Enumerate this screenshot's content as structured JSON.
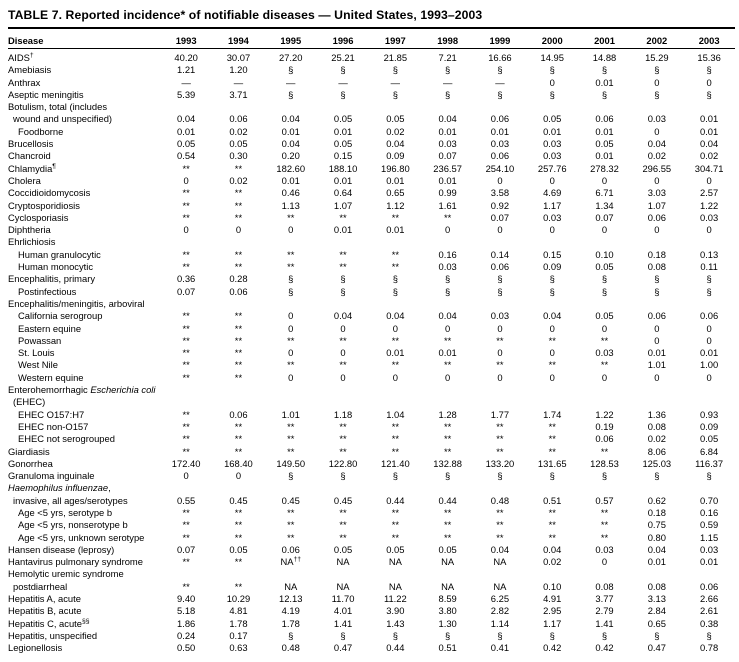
{
  "title": "TABLE 7. Reported incidence* of notifiable diseases — United States, 1993–2003",
  "table": {
    "disease_header": "Disease",
    "years": [
      "1993",
      "1994",
      "1995",
      "1996",
      "1997",
      "1998",
      "1999",
      "2000",
      "2001",
      "2002",
      "2003"
    ],
    "rows": [
      {
        "pre": "AIDS",
        "it": "",
        "post": "",
        "sup": "†",
        "indent": 0,
        "values": [
          "40.20",
          "30.07",
          "27.20",
          "25.21",
          "21.85",
          "7.21",
          "16.66",
          "14.95",
          "14.88",
          "15.29",
          "15.36"
        ]
      },
      {
        "pre": "Amebiasis",
        "it": "",
        "post": "",
        "sup": "",
        "indent": 0,
        "values": [
          "1.21",
          "1.20",
          "§",
          "§",
          "§",
          "§",
          "§",
          "§",
          "§",
          "§",
          "§"
        ]
      },
      {
        "pre": "Anthrax",
        "it": "",
        "post": "",
        "sup": "",
        "indent": 0,
        "values": [
          "—",
          "—",
          "—",
          "—",
          "—",
          "—",
          "—",
          "0",
          "0.01",
          "0",
          "0"
        ]
      },
      {
        "pre": "Aseptic meningitis",
        "it": "",
        "post": "",
        "sup": "",
        "indent": 0,
        "values": [
          "5.39",
          "3.71",
          "§",
          "§",
          "§",
          "§",
          "§",
          "§",
          "§",
          "§",
          "§"
        ]
      },
      {
        "pre": "Botulism, total (includes",
        "it": "",
        "post": "",
        "sup": "",
        "indent": 0,
        "values": []
      },
      {
        "pre": "wound and unspecified)",
        "it": "",
        "post": "",
        "sup": "",
        "indent": 1,
        "values": [
          "0.04",
          "0.06",
          "0.04",
          "0.05",
          "0.05",
          "0.04",
          "0.06",
          "0.05",
          "0.06",
          "0.03",
          "0.01"
        ]
      },
      {
        "pre": "Foodborne",
        "it": "",
        "post": "",
        "sup": "",
        "indent": 2,
        "values": [
          "0.01",
          "0.02",
          "0.01",
          "0.01",
          "0.02",
          "0.01",
          "0.01",
          "0.01",
          "0.01",
          "0",
          "0.01"
        ]
      },
      {
        "pre": "Brucellosis",
        "it": "",
        "post": "",
        "sup": "",
        "indent": 0,
        "values": [
          "0.05",
          "0.05",
          "0.04",
          "0.05",
          "0.04",
          "0.03",
          "0.03",
          "0.03",
          "0.05",
          "0.04",
          "0.04"
        ]
      },
      {
        "pre": "Chancroid",
        "it": "",
        "post": "",
        "sup": "",
        "indent": 0,
        "values": [
          "0.54",
          "0.30",
          "0.20",
          "0.15",
          "0.09",
          "0.07",
          "0.06",
          "0.03",
          "0.01",
          "0.02",
          "0.02"
        ]
      },
      {
        "pre": "Chlamydia",
        "it": "",
        "post": "",
        "sup": "¶",
        "indent": 0,
        "values": [
          "**",
          "**",
          "182.60",
          "188.10",
          "196.80",
          "236.57",
          "254.10",
          "257.76",
          "278.32",
          "296.55",
          "304.71"
        ]
      },
      {
        "pre": "Cholera",
        "it": "",
        "post": "",
        "sup": "",
        "indent": 0,
        "values": [
          "0",
          "0.02",
          "0.01",
          "0.01",
          "0.01",
          "0.01",
          "0",
          "0",
          "0",
          "0",
          "0"
        ]
      },
      {
        "pre": "Coccidioidomycosis",
        "it": "",
        "post": "",
        "sup": "",
        "indent": 0,
        "values": [
          "**",
          "**",
          "0.46",
          "0.64",
          "0.65",
          "0.99",
          "3.58",
          "4.69",
          "6.71",
          "3.03",
          "2.57"
        ]
      },
      {
        "pre": "Cryptosporidiosis",
        "it": "",
        "post": "",
        "sup": "",
        "indent": 0,
        "values": [
          "**",
          "**",
          "1.13",
          "1.07",
          "1.12",
          "1.61",
          "0.92",
          "1.17",
          "1.34",
          "1.07",
          "1.22"
        ]
      },
      {
        "pre": "Cyclosporiasis",
        "it": "",
        "post": "",
        "sup": "",
        "indent": 0,
        "values": [
          "**",
          "**",
          "**",
          "**",
          "**",
          "**",
          "0.07",
          "0.03",
          "0.07",
          "0.06",
          "0.03"
        ]
      },
      {
        "pre": "Diphtheria",
        "it": "",
        "post": "",
        "sup": "",
        "indent": 0,
        "values": [
          "0",
          "0",
          "0",
          "0.01",
          "0.01",
          "0",
          "0",
          "0",
          "0",
          "0",
          "0"
        ]
      },
      {
        "pre": "Ehrlichiosis",
        "it": "",
        "post": "",
        "sup": "",
        "indent": 0,
        "values": []
      },
      {
        "pre": "Human granulocytic",
        "it": "",
        "post": "",
        "sup": "",
        "indent": 2,
        "values": [
          "**",
          "**",
          "**",
          "**",
          "**",
          "0.16",
          "0.14",
          "0.15",
          "0.10",
          "0.18",
          "0.13"
        ]
      },
      {
        "pre": "Human monocytic",
        "it": "",
        "post": "",
        "sup": "",
        "indent": 2,
        "values": [
          "**",
          "**",
          "**",
          "**",
          "**",
          "0.03",
          "0.06",
          "0.09",
          "0.05",
          "0.08",
          "0.11"
        ]
      },
      {
        "pre": "Encephalitis, primary",
        "it": "",
        "post": "",
        "sup": "",
        "indent": 0,
        "values": [
          "0.36",
          "0.28",
          "§",
          "§",
          "§",
          "§",
          "§",
          "§",
          "§",
          "§",
          "§"
        ]
      },
      {
        "pre": "Postinfectious",
        "it": "",
        "post": "",
        "sup": "",
        "indent": 2,
        "values": [
          "0.07",
          "0.06",
          "§",
          "§",
          "§",
          "§",
          "§",
          "§",
          "§",
          "§",
          "§"
        ]
      },
      {
        "pre": "Encephalitis/meningitis, arboviral",
        "it": "",
        "post": "",
        "sup": "",
        "indent": 0,
        "values": []
      },
      {
        "pre": "California serogroup",
        "it": "",
        "post": "",
        "sup": "",
        "indent": 2,
        "values": [
          "**",
          "**",
          "0",
          "0.04",
          "0.04",
          "0.04",
          "0.03",
          "0.04",
          "0.05",
          "0.06",
          "0.06"
        ]
      },
      {
        "pre": "Eastern equine",
        "it": "",
        "post": "",
        "sup": "",
        "indent": 2,
        "values": [
          "**",
          "**",
          "0",
          "0",
          "0",
          "0",
          "0",
          "0",
          "0",
          "0",
          "0"
        ]
      },
      {
        "pre": "Powassan",
        "it": "",
        "post": "",
        "sup": "",
        "indent": 2,
        "values": [
          "**",
          "**",
          "**",
          "**",
          "**",
          "**",
          "**",
          "**",
          "**",
          "0",
          "0"
        ]
      },
      {
        "pre": "St. Louis",
        "it": "",
        "post": "",
        "sup": "",
        "indent": 2,
        "values": [
          "**",
          "**",
          "0",
          "0",
          "0.01",
          "0.01",
          "0",
          "0",
          "0.03",
          "0.01",
          "0.01"
        ]
      },
      {
        "pre": "West Nile",
        "it": "",
        "post": "",
        "sup": "",
        "indent": 2,
        "values": [
          "**",
          "**",
          "**",
          "**",
          "**",
          "**",
          "**",
          "**",
          "**",
          "1.01",
          "1.00"
        ]
      },
      {
        "pre": "Western equine",
        "it": "",
        "post": "",
        "sup": "",
        "indent": 2,
        "values": [
          "**",
          "**",
          "0",
          "0",
          "0",
          "0",
          "0",
          "0",
          "0",
          "0",
          "0"
        ]
      },
      {
        "pre": "Enterohemorrhagic ",
        "it": "Escherichia coli",
        "post": "",
        "sup": "",
        "indent": 0,
        "values": []
      },
      {
        "pre": "(EHEC)",
        "it": "",
        "post": "",
        "sup": "",
        "indent": 1,
        "values": []
      },
      {
        "pre": "EHEC O157:H7",
        "it": "",
        "post": "",
        "sup": "",
        "indent": 2,
        "values": [
          "**",
          "0.06",
          "1.01",
          "1.18",
          "1.04",
          "1.28",
          "1.77",
          "1.74",
          "1.22",
          "1.36",
          "0.93"
        ]
      },
      {
        "pre": "EHEC non-O157",
        "it": "",
        "post": "",
        "sup": "",
        "indent": 2,
        "values": [
          "**",
          "**",
          "**",
          "**",
          "**",
          "**",
          "**",
          "**",
          "0.19",
          "0.08",
          "0.09"
        ]
      },
      {
        "pre": "EHEC not serogrouped",
        "it": "",
        "post": "",
        "sup": "",
        "indent": 2,
        "values": [
          "**",
          "**",
          "**",
          "**",
          "**",
          "**",
          "**",
          "**",
          "0.06",
          "0.02",
          "0.05"
        ]
      },
      {
        "pre": "Giardiasis",
        "it": "",
        "post": "",
        "sup": "",
        "indent": 0,
        "values": [
          "**",
          "**",
          "**",
          "**",
          "**",
          "**",
          "**",
          "**",
          "**",
          "8.06",
          "6.84"
        ]
      },
      {
        "pre": "Gonorrhea",
        "it": "",
        "post": "",
        "sup": "",
        "indent": 0,
        "values": [
          "172.40",
          "168.40",
          "149.50",
          "122.80",
          "121.40",
          "132.88",
          "133.20",
          "131.65",
          "128.53",
          "125.03",
          "116.37"
        ]
      },
      {
        "pre": "Granuloma inguinale",
        "it": "",
        "post": "",
        "sup": "",
        "indent": 0,
        "values": [
          "0",
          "0",
          "§",
          "§",
          "§",
          "§",
          "§",
          "§",
          "§",
          "§",
          "§"
        ]
      },
      {
        "pre": "",
        "it": "Haemophilus influenzae",
        "post": ",",
        "sup": "",
        "indent": 0,
        "values": []
      },
      {
        "pre": "invasive, all ages/serotypes",
        "it": "",
        "post": "",
        "sup": "",
        "indent": 1,
        "values": [
          "0.55",
          "0.45",
          "0.45",
          "0.45",
          "0.44",
          "0.44",
          "0.48",
          "0.51",
          "0.57",
          "0.62",
          "0.70"
        ]
      },
      {
        "pre": "Age <5 yrs, serotype b",
        "it": "",
        "post": "",
        "sup": "",
        "indent": 2,
        "values": [
          "**",
          "**",
          "**",
          "**",
          "**",
          "**",
          "**",
          "**",
          "**",
          "0.18",
          "0.16"
        ]
      },
      {
        "pre": "Age <5 yrs, nonserotype b",
        "it": "",
        "post": "",
        "sup": "",
        "indent": 2,
        "values": [
          "**",
          "**",
          "**",
          "**",
          "**",
          "**",
          "**",
          "**",
          "**",
          "0.75",
          "0.59"
        ]
      },
      {
        "pre": "Age <5 yrs, unknown serotype",
        "it": "",
        "post": "",
        "sup": "",
        "indent": 2,
        "values": [
          "**",
          "**",
          "**",
          "**",
          "**",
          "**",
          "**",
          "**",
          "**",
          "0.80",
          "1.15"
        ]
      },
      {
        "pre": "Hansen disease (leprosy)",
        "it": "",
        "post": "",
        "sup": "",
        "indent": 0,
        "values": [
          "0.07",
          "0.05",
          "0.06",
          "0.05",
          "0.05",
          "0.05",
          "0.04",
          "0.04",
          "0.03",
          "0.04",
          "0.03"
        ]
      },
      {
        "pre": "Hantavirus pulmonary syndrome",
        "it": "",
        "post": "",
        "sup": "",
        "indent": 0,
        "values": [
          "**",
          "**",
          "NA^††",
          "NA",
          "NA",
          "NA",
          "NA",
          "0.02",
          "0",
          "0.01",
          "0.01"
        ]
      },
      {
        "pre": "Hemolytic uremic syndrome",
        "it": "",
        "post": "",
        "sup": "",
        "indent": 0,
        "values": []
      },
      {
        "pre": "postdiarrheal",
        "it": "",
        "post": "",
        "sup": "",
        "indent": 1,
        "values": [
          "**",
          "**",
          "NA",
          "NA",
          "NA",
          "NA",
          "NA",
          "0.10",
          "0.08",
          "0.08",
          "0.06"
        ]
      },
      {
        "pre": "Hepatitis A, acute",
        "it": "",
        "post": "",
        "sup": "",
        "indent": 0,
        "values": [
          "9.40",
          "10.29",
          "12.13",
          "11.70",
          "11.22",
          "8.59",
          "6.25",
          "4.91",
          "3.77",
          "3.13",
          "2.66"
        ]
      },
      {
        "pre": "Hepatitis B, acute",
        "it": "",
        "post": "",
        "sup": "",
        "indent": 0,
        "values": [
          "5.18",
          "4.81",
          "4.19",
          "4.01",
          "3.90",
          "3.80",
          "2.82",
          "2.95",
          "2.79",
          "2.84",
          "2.61"
        ]
      },
      {
        "pre": "Hepatitis C, acute",
        "it": "",
        "post": "",
        "sup": "§§",
        "indent": 0,
        "values": [
          "1.86",
          "1.78",
          "1.78",
          "1.41",
          "1.43",
          "1.30",
          "1.14",
          "1.17",
          "1.41",
          "0.65",
          "0.38"
        ]
      },
      {
        "pre": "Hepatitis, unspecified",
        "it": "",
        "post": "",
        "sup": "",
        "indent": 0,
        "values": [
          "0.24",
          "0.17",
          "§",
          "§",
          "§",
          "§",
          "§",
          "§",
          "§",
          "§",
          "§"
        ]
      },
      {
        "pre": "Legionellosis",
        "it": "",
        "post": "",
        "sup": "",
        "indent": 0,
        "values": [
          "0.50",
          "0.63",
          "0.48",
          "0.47",
          "0.44",
          "0.51",
          "0.41",
          "0.42",
          "0.42",
          "0.47",
          "0.78"
        ]
      }
    ]
  }
}
